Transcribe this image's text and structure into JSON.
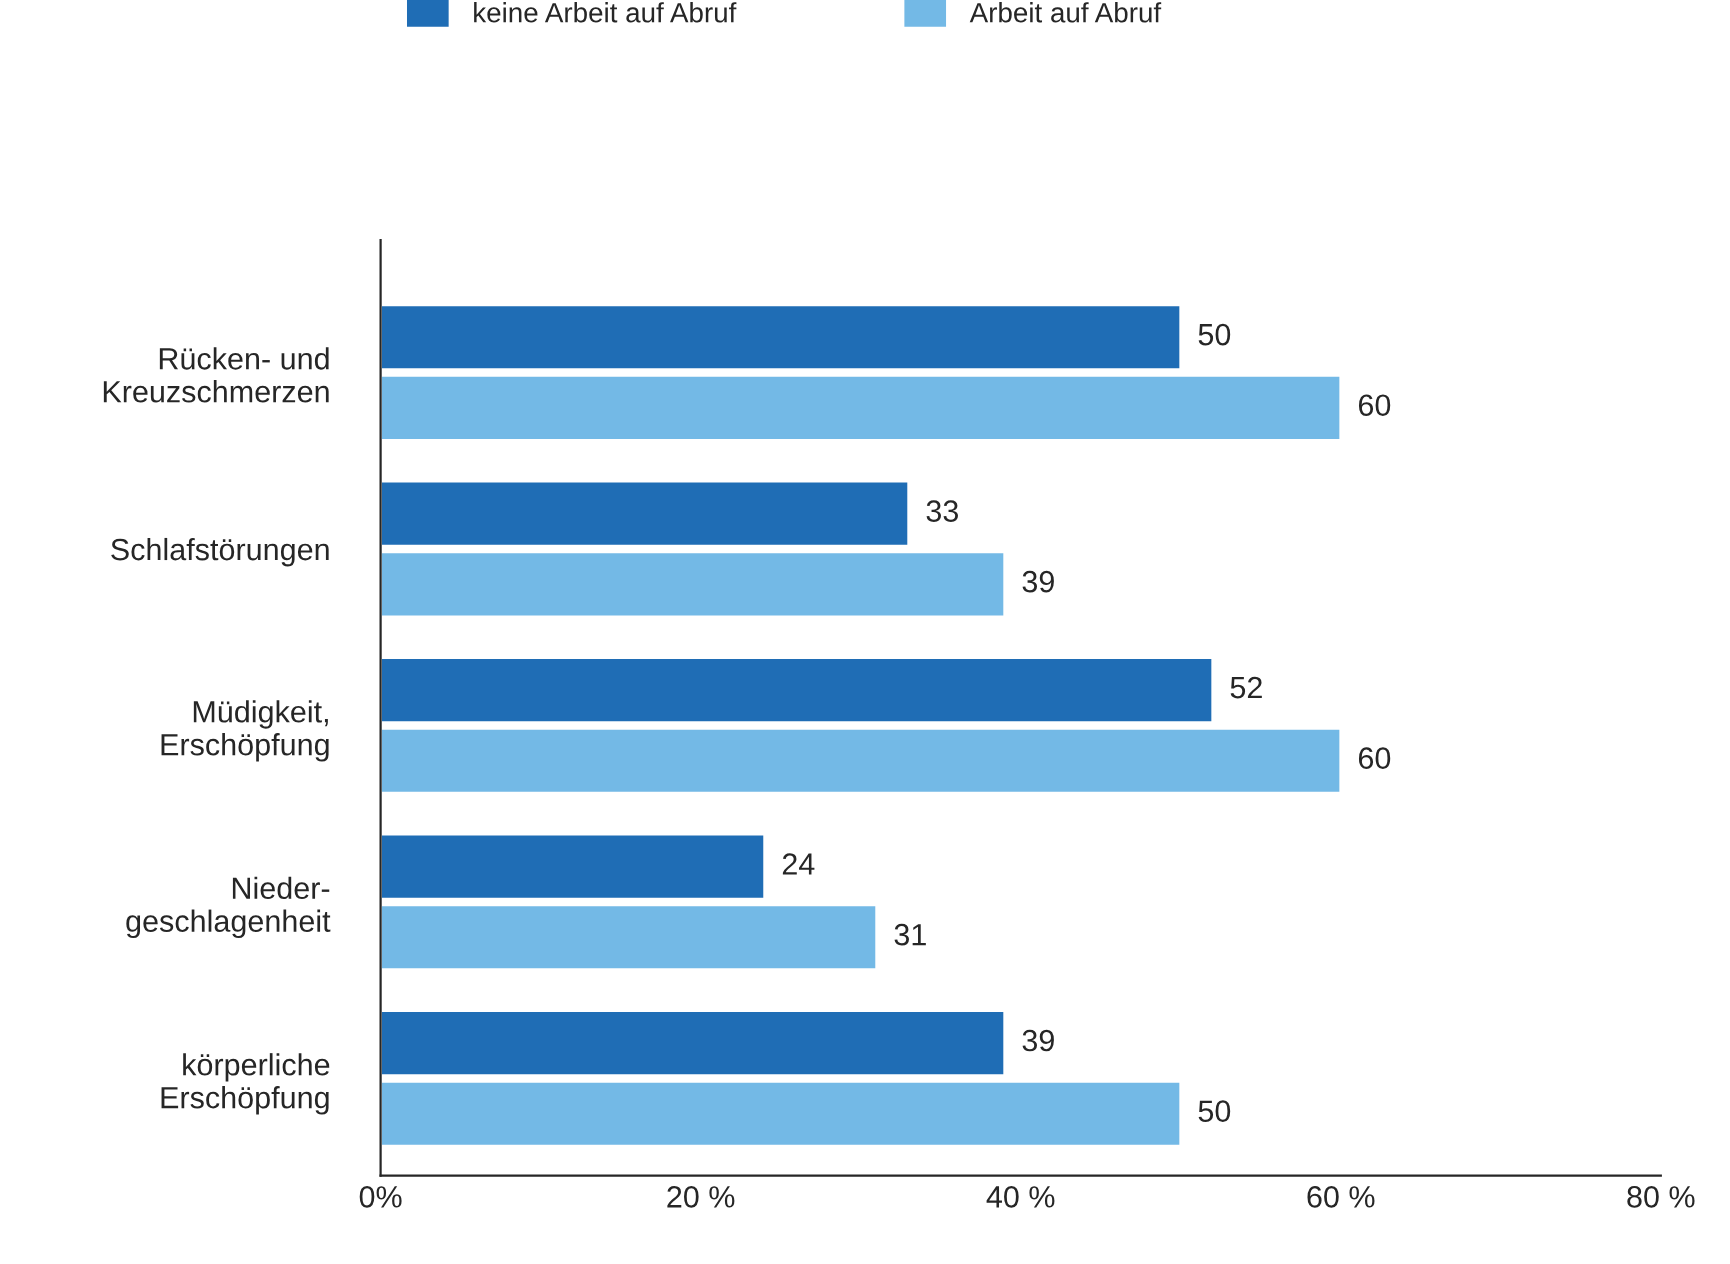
{
  "chart_data": {
    "type": "bar",
    "orientation": "horizontal",
    "categories": [
      "Rücken- und\nKreuzschmerzen",
      "Schlafstörungen",
      "Müdigkeit,\nErschöpfung",
      "Nieder-\ngeschlagenheit",
      "körperliche\nErschöpfung"
    ],
    "series": [
      {
        "name": "keine Arbeit auf Abruf",
        "color": "#1f6db5",
        "values": [
          50,
          33,
          52,
          24,
          39
        ]
      },
      {
        "name": "Arbeit auf Abruf",
        "color": "#73b9e6",
        "values": [
          60,
          39,
          60,
          31,
          50
        ]
      }
    ],
    "xlim": [
      0,
      80
    ],
    "xticks": [
      {
        "value": 0,
        "label": "0%"
      },
      {
        "value": 20,
        "label": "20 %"
      },
      {
        "value": 40,
        "label": "40 %"
      },
      {
        "value": 60,
        "label": "60 %"
      },
      {
        "value": 80,
        "label": "80 %"
      }
    ],
    "data_labels": true,
    "grid": false,
    "legend": "top"
  }
}
